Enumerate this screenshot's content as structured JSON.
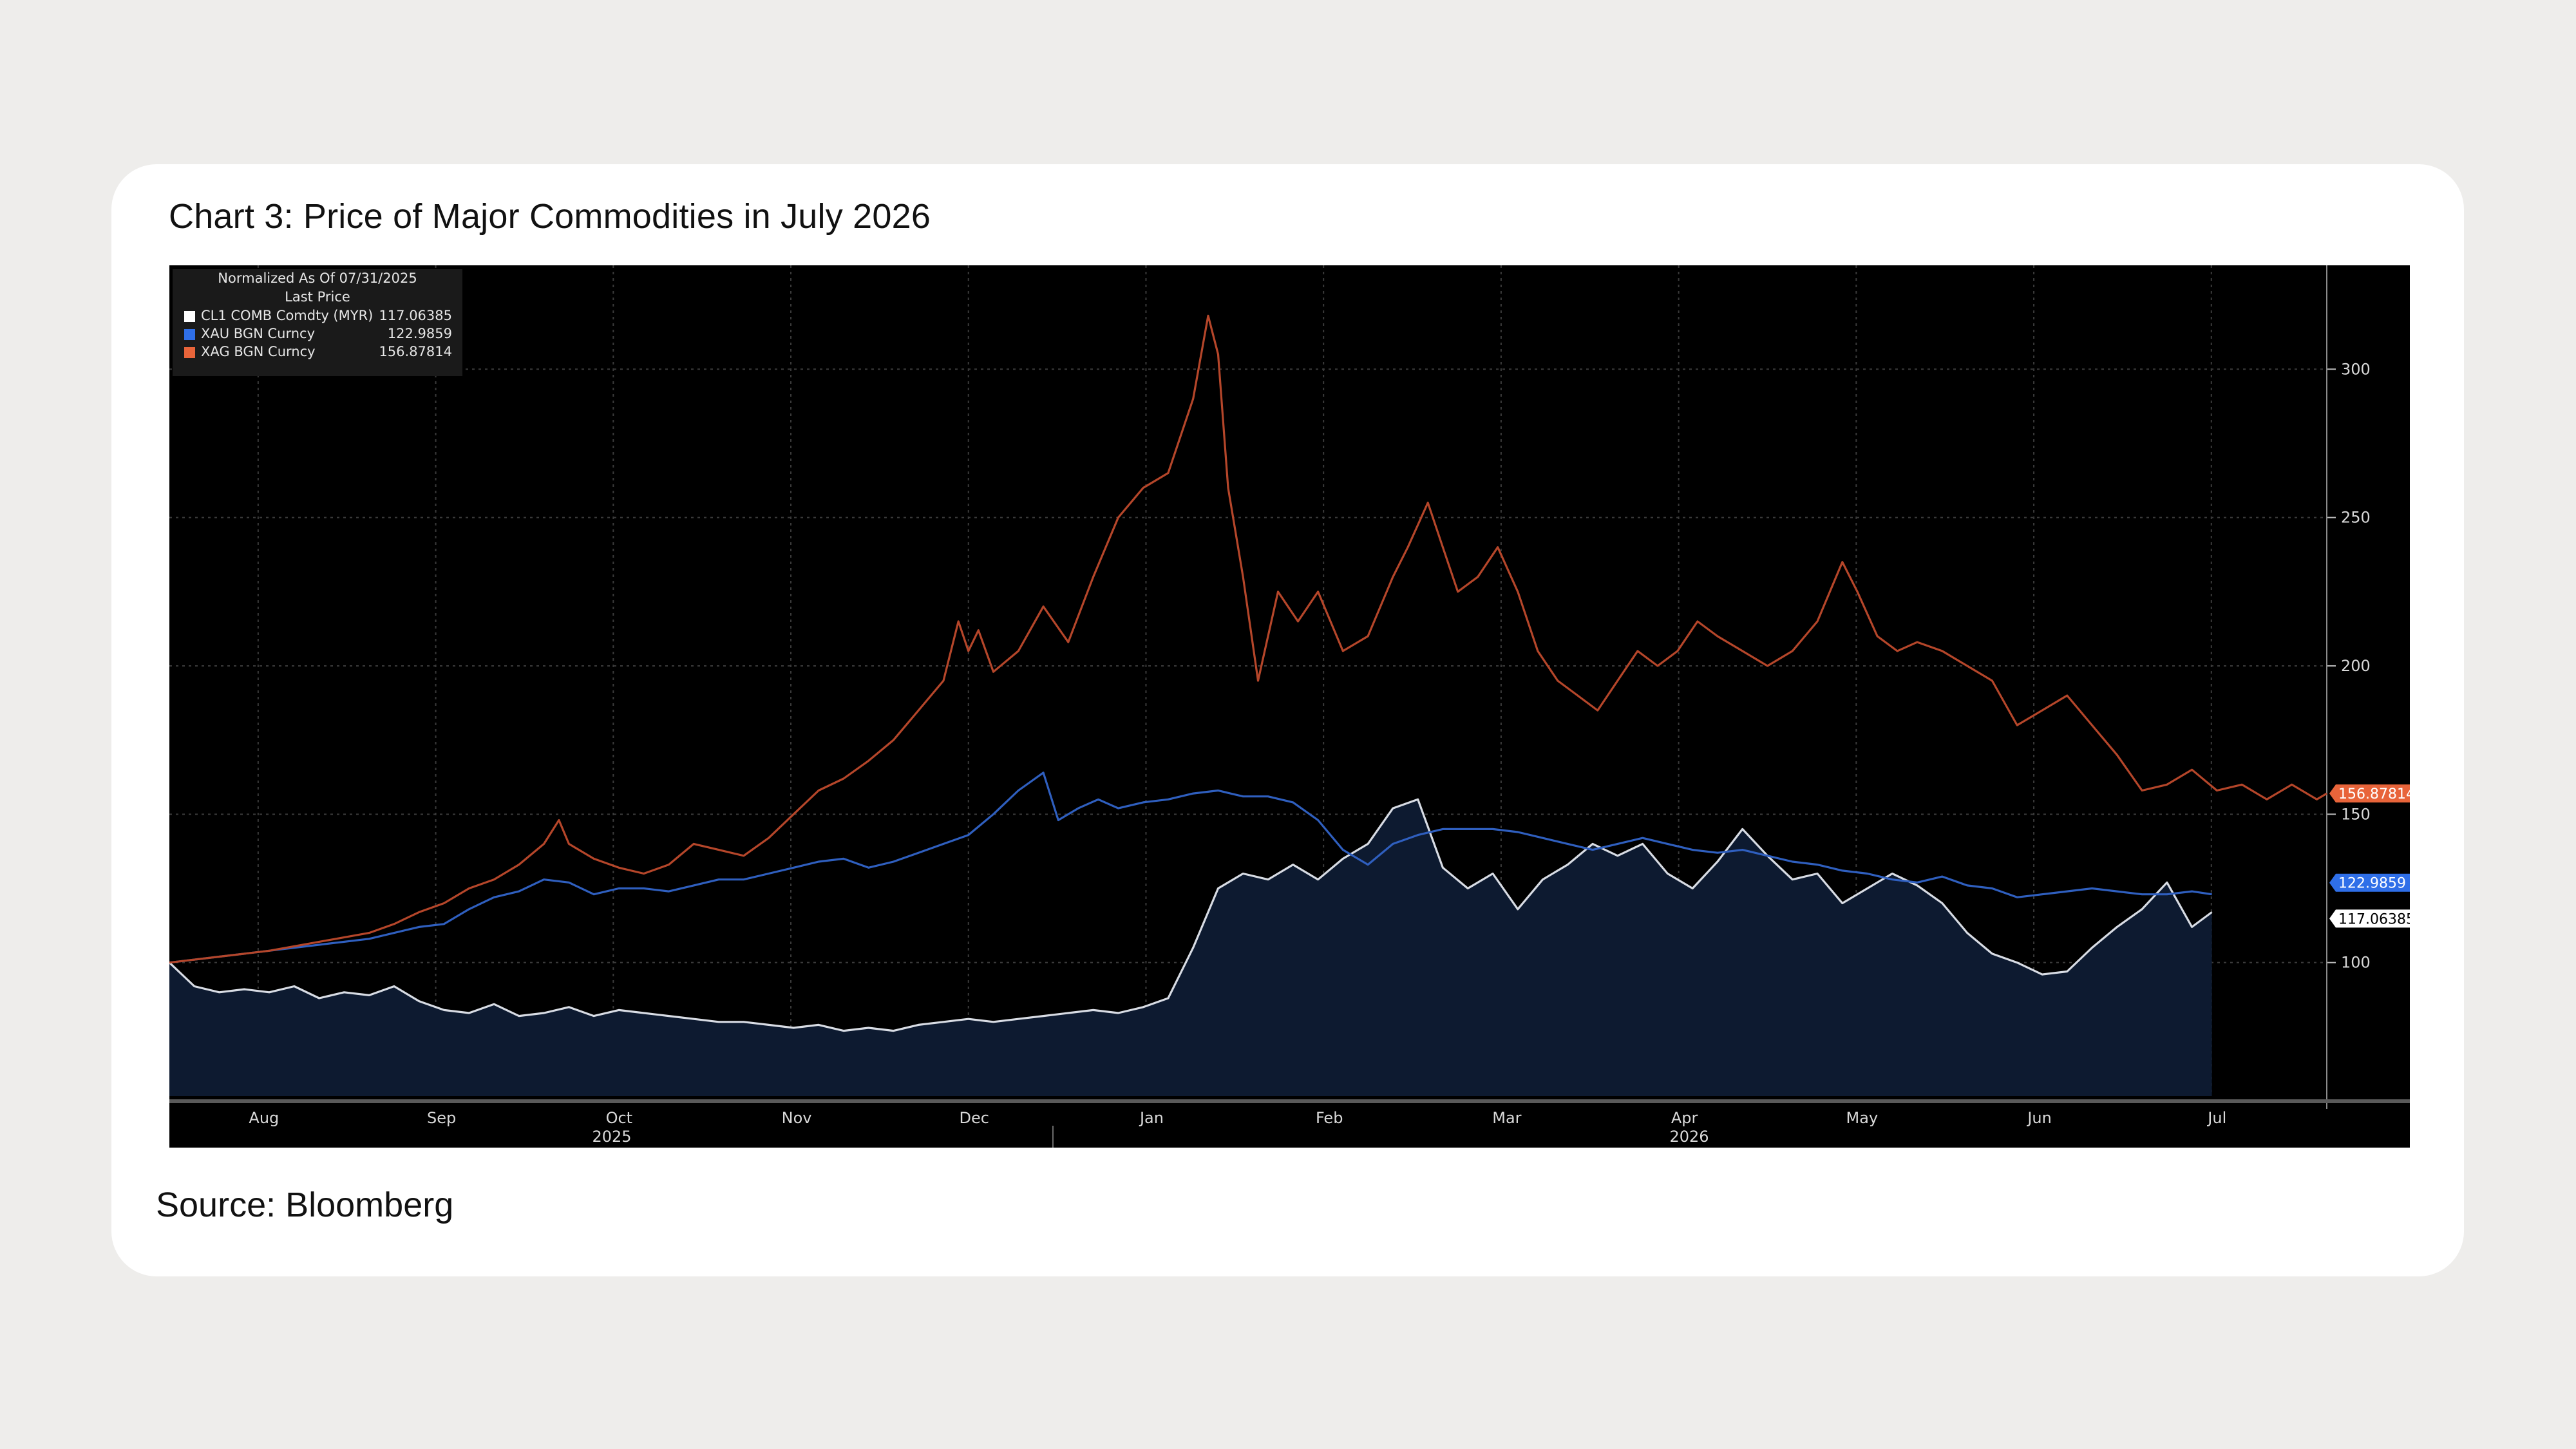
{
  "page": {
    "title": "Chart 3: Price of Major Commodities in July 2026",
    "source": "Source: Bloomberg"
  },
  "legend": {
    "header1": "Normalized As Of 07/31/2025",
    "header2": "Last Price",
    "items": [
      {
        "label": "CL1 COMB Comdty (MYR)",
        "value": "117.06385",
        "color": "#ffffff"
      },
      {
        "label": "XAU BGN Curncy",
        "value": "122.9859",
        "color": "#2f6fe8"
      },
      {
        "label": "XAG BGN Curncy",
        "value": "156.87814",
        "color": "#e8643a"
      }
    ]
  },
  "colors": {
    "page_bg": "#eeedeb",
    "card_bg": "#ffffff",
    "chart_bg": "#000000",
    "oil": "#d8dce4",
    "oil_fill": "#0d1a30",
    "gold": "#2f5fbf",
    "silver": "#b5462a",
    "grid": "#3b3b3b"
  },
  "chart_data": {
    "type": "line",
    "ylim": [
      55,
      335
    ],
    "yticks": [
      100,
      150,
      200,
      250,
      300
    ],
    "months": [
      "Aug",
      "Sep",
      "Oct",
      "Nov",
      "Dec",
      "Jan",
      "Feb",
      "Mar",
      "Apr",
      "May",
      "Jun",
      "Jul"
    ],
    "years": [
      "2025",
      "2026"
    ],
    "grid": true,
    "legend_position": "top-left",
    "series": [
      {
        "name": "CL1 COMB Comdty (MYR)",
        "last": "117.06385",
        "label_color": "#ffffff",
        "area": true,
        "points": [
          [
            0,
            100
          ],
          [
            5,
            92
          ],
          [
            10,
            90
          ],
          [
            15,
            91
          ],
          [
            20,
            90
          ],
          [
            25,
            92
          ],
          [
            30,
            88
          ],
          [
            35,
            90
          ],
          [
            40,
            89
          ],
          [
            45,
            92
          ],
          [
            50,
            87
          ],
          [
            55,
            84
          ],
          [
            60,
            83
          ],
          [
            65,
            86
          ],
          [
            70,
            82
          ],
          [
            75,
            83
          ],
          [
            80,
            85
          ],
          [
            85,
            82
          ],
          [
            90,
            84
          ],
          [
            95,
            83
          ],
          [
            100,
            82
          ],
          [
            105,
            81
          ],
          [
            110,
            80
          ],
          [
            115,
            80
          ],
          [
            120,
            79
          ],
          [
            125,
            78
          ],
          [
            130,
            79
          ],
          [
            135,
            77
          ],
          [
            140,
            78
          ],
          [
            145,
            77
          ],
          [
            150,
            79
          ],
          [
            155,
            80
          ],
          [
            160,
            81
          ],
          [
            165,
            80
          ],
          [
            170,
            81
          ],
          [
            175,
            82
          ],
          [
            180,
            83
          ],
          [
            185,
            84
          ],
          [
            190,
            83
          ],
          [
            195,
            85
          ],
          [
            200,
            88
          ],
          [
            205,
            105
          ],
          [
            210,
            125
          ],
          [
            215,
            130
          ],
          [
            220,
            128
          ],
          [
            225,
            133
          ],
          [
            230,
            128
          ],
          [
            235,
            135
          ],
          [
            240,
            140
          ],
          [
            245,
            152
          ],
          [
            250,
            155
          ],
          [
            255,
            132
          ],
          [
            260,
            125
          ],
          [
            265,
            130
          ],
          [
            270,
            118
          ],
          [
            275,
            128
          ],
          [
            280,
            133
          ],
          [
            285,
            140
          ],
          [
            290,
            136
          ],
          [
            295,
            140
          ],
          [
            300,
            130
          ],
          [
            305,
            125
          ],
          [
            310,
            134
          ],
          [
            315,
            145
          ],
          [
            320,
            136
          ],
          [
            325,
            128
          ],
          [
            330,
            130
          ],
          [
            335,
            120
          ],
          [
            340,
            125
          ],
          [
            345,
            130
          ],
          [
            350,
            126
          ],
          [
            355,
            120
          ],
          [
            360,
            110
          ],
          [
            365,
            103
          ],
          [
            370,
            100
          ],
          [
            375,
            96
          ],
          [
            380,
            97
          ],
          [
            385,
            105
          ],
          [
            390,
            112
          ],
          [
            395,
            118
          ],
          [
            400,
            127
          ],
          [
            405,
            112
          ],
          [
            409,
            117
          ]
        ]
      },
      {
        "name": "XAU BGN Curncy",
        "last": "122.9859",
        "label_color": "#2f6fe8",
        "area": false,
        "points": [
          [
            0,
            100
          ],
          [
            10,
            102
          ],
          [
            20,
            104
          ],
          [
            30,
            106
          ],
          [
            40,
            108
          ],
          [
            50,
            112
          ],
          [
            55,
            113
          ],
          [
            60,
            118
          ],
          [
            65,
            122
          ],
          [
            70,
            124
          ],
          [
            75,
            128
          ],
          [
            80,
            127
          ],
          [
            85,
            123
          ],
          [
            90,
            125
          ],
          [
            95,
            125
          ],
          [
            100,
            124
          ],
          [
            105,
            126
          ],
          [
            110,
            128
          ],
          [
            115,
            128
          ],
          [
            120,
            130
          ],
          [
            125,
            132
          ],
          [
            130,
            134
          ],
          [
            135,
            135
          ],
          [
            140,
            132
          ],
          [
            145,
            134
          ],
          [
            150,
            137
          ],
          [
            155,
            140
          ],
          [
            160,
            143
          ],
          [
            165,
            150
          ],
          [
            170,
            158
          ],
          [
            175,
            164
          ],
          [
            178,
            148
          ],
          [
            182,
            152
          ],
          [
            186,
            155
          ],
          [
            190,
            152
          ],
          [
            195,
            154
          ],
          [
            200,
            155
          ],
          [
            205,
            157
          ],
          [
            210,
            158
          ],
          [
            215,
            156
          ],
          [
            220,
            156
          ],
          [
            225,
            154
          ],
          [
            230,
            148
          ],
          [
            235,
            138
          ],
          [
            240,
            133
          ],
          [
            245,
            140
          ],
          [
            250,
            143
          ],
          [
            255,
            145
          ],
          [
            260,
            145
          ],
          [
            265,
            145
          ],
          [
            270,
            144
          ],
          [
            275,
            142
          ],
          [
            280,
            140
          ],
          [
            285,
            138
          ],
          [
            290,
            140
          ],
          [
            295,
            142
          ],
          [
            300,
            140
          ],
          [
            305,
            138
          ],
          [
            310,
            137
          ],
          [
            315,
            138
          ],
          [
            320,
            136
          ],
          [
            325,
            134
          ],
          [
            330,
            133
          ],
          [
            335,
            131
          ],
          [
            340,
            130
          ],
          [
            345,
            128
          ],
          [
            350,
            127
          ],
          [
            355,
            129
          ],
          [
            360,
            126
          ],
          [
            365,
            125
          ],
          [
            370,
            122
          ],
          [
            375,
            123
          ],
          [
            380,
            124
          ],
          [
            385,
            125
          ],
          [
            390,
            124
          ],
          [
            395,
            123
          ],
          [
            400,
            123
          ],
          [
            405,
            124
          ],
          [
            409,
            123
          ]
        ]
      },
      {
        "name": "XAG BGN Curncy",
        "last": "156.87814",
        "label_color": "#e8643a",
        "area": false,
        "points": [
          [
            0,
            100
          ],
          [
            10,
            102
          ],
          [
            20,
            104
          ],
          [
            30,
            107
          ],
          [
            40,
            110
          ],
          [
            45,
            113
          ],
          [
            50,
            117
          ],
          [
            55,
            120
          ],
          [
            60,
            125
          ],
          [
            65,
            128
          ],
          [
            70,
            133
          ],
          [
            75,
            140
          ],
          [
            78,
            148
          ],
          [
            80,
            140
          ],
          [
            85,
            135
          ],
          [
            90,
            132
          ],
          [
            95,
            130
          ],
          [
            100,
            133
          ],
          [
            105,
            140
          ],
          [
            110,
            138
          ],
          [
            115,
            136
          ],
          [
            120,
            142
          ],
          [
            125,
            150
          ],
          [
            130,
            158
          ],
          [
            135,
            162
          ],
          [
            140,
            168
          ],
          [
            145,
            175
          ],
          [
            150,
            185
          ],
          [
            155,
            195
          ],
          [
            158,
            215
          ],
          [
            160,
            205
          ],
          [
            162,
            212
          ],
          [
            165,
            198
          ],
          [
            170,
            205
          ],
          [
            175,
            220
          ],
          [
            180,
            208
          ],
          [
            185,
            230
          ],
          [
            190,
            250
          ],
          [
            195,
            260
          ],
          [
            200,
            265
          ],
          [
            205,
            290
          ],
          [
            208,
            318
          ],
          [
            210,
            305
          ],
          [
            212,
            260
          ],
          [
            215,
            230
          ],
          [
            218,
            195
          ],
          [
            222,
            225
          ],
          [
            226,
            215
          ],
          [
            230,
            225
          ],
          [
            235,
            205
          ],
          [
            240,
            210
          ],
          [
            245,
            230
          ],
          [
            248,
            240
          ],
          [
            252,
            255
          ],
          [
            255,
            240
          ],
          [
            258,
            225
          ],
          [
            262,
            230
          ],
          [
            266,
            240
          ],
          [
            270,
            225
          ],
          [
            274,
            205
          ],
          [
            278,
            195
          ],
          [
            282,
            190
          ],
          [
            286,
            185
          ],
          [
            290,
            195
          ],
          [
            294,
            205
          ],
          [
            298,
            200
          ],
          [
            302,
            205
          ],
          [
            306,
            215
          ],
          [
            310,
            210
          ],
          [
            315,
            205
          ],
          [
            320,
            200
          ],
          [
            325,
            205
          ],
          [
            330,
            215
          ],
          [
            335,
            235
          ],
          [
            338,
            225
          ],
          [
            342,
            210
          ],
          [
            346,
            205
          ],
          [
            350,
            208
          ],
          [
            355,
            205
          ],
          [
            360,
            200
          ],
          [
            365,
            195
          ],
          [
            370,
            180
          ],
          [
            375,
            185
          ],
          [
            380,
            190
          ],
          [
            385,
            180
          ],
          [
            390,
            170
          ],
          [
            395,
            158
          ],
          [
            400,
            160
          ],
          [
            405,
            165
          ],
          [
            410,
            158
          ],
          [
            415,
            160
          ],
          [
            420,
            155
          ],
          [
            425,
            160
          ],
          [
            430,
            155
          ],
          [
            432,
            157
          ]
        ]
      }
    ]
  }
}
